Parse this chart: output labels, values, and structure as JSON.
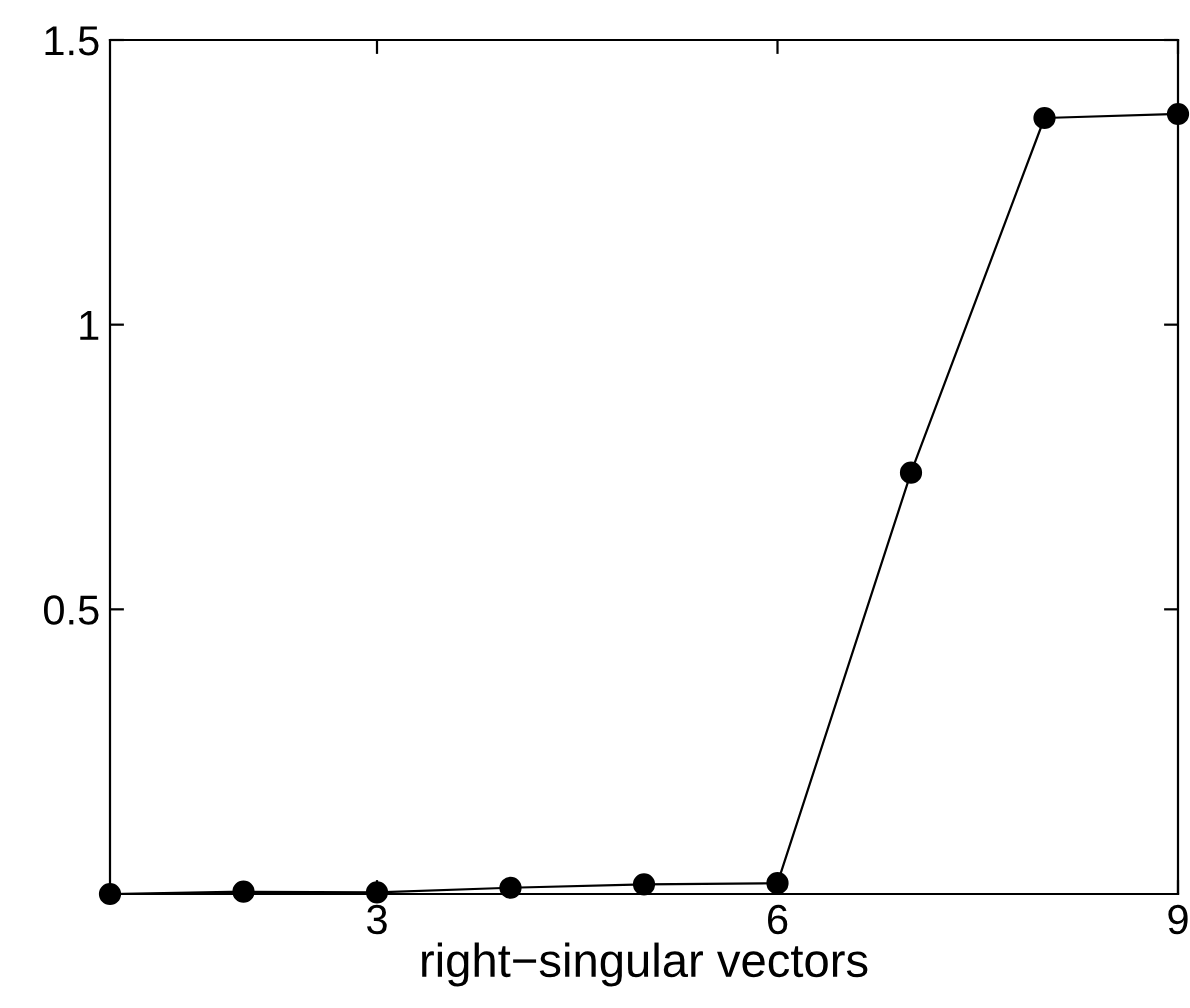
{
  "chart_data": {
    "type": "line",
    "xlabel": "right−singular vectors",
    "x": [
      1,
      2,
      3,
      4,
      5,
      6,
      7,
      8,
      9
    ],
    "values": [
      0.0,
      0.004,
      0.003,
      0.011,
      0.017,
      0.019,
      0.74,
      1.363,
      1.37
    ],
    "color": "#000000",
    "marker": "circle",
    "line_style": "solid",
    "xlim": [
      1,
      9
    ],
    "ylim": [
      0,
      1.5
    ],
    "xticks": [
      3,
      6,
      9
    ],
    "yticks": [
      0.5,
      1,
      1.5
    ],
    "grid": false,
    "legend": false
  }
}
